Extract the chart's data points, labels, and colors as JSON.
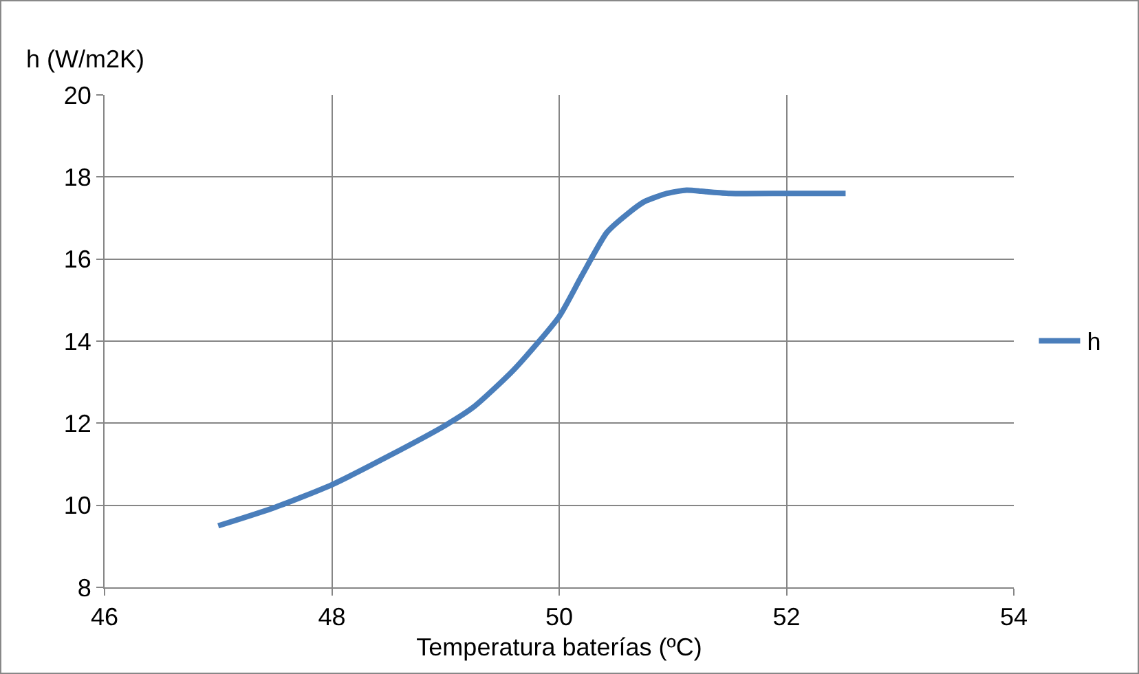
{
  "chart_data": {
    "type": "line",
    "ylabel": "h (W/m2K)",
    "xlabel": "Temperatura baterías (ºC)",
    "x": [
      47.0,
      47.5,
      48.0,
      48.5,
      49.0,
      49.25,
      49.6,
      50.0,
      50.2,
      50.42,
      50.6,
      50.75,
      50.95,
      51.12,
      51.3,
      51.5,
      52.0,
      52.52
    ],
    "series": [
      {
        "name": "h",
        "color": "#4a7ebb",
        "values": [
          9.5,
          9.95,
          10.5,
          11.2,
          11.95,
          12.4,
          13.3,
          14.6,
          15.6,
          16.65,
          17.1,
          17.4,
          17.6,
          17.68,
          17.64,
          17.6,
          17.6,
          17.6
        ]
      }
    ],
    "xlim": [
      46,
      54
    ],
    "xticks": [
      46,
      48,
      50,
      52,
      54
    ],
    "ylim": [
      8,
      20
    ],
    "yticks": [
      8,
      10,
      12,
      14,
      16,
      18,
      20
    ],
    "grid": true,
    "legend": "right",
    "marker": "none",
    "line_style": "solid"
  }
}
